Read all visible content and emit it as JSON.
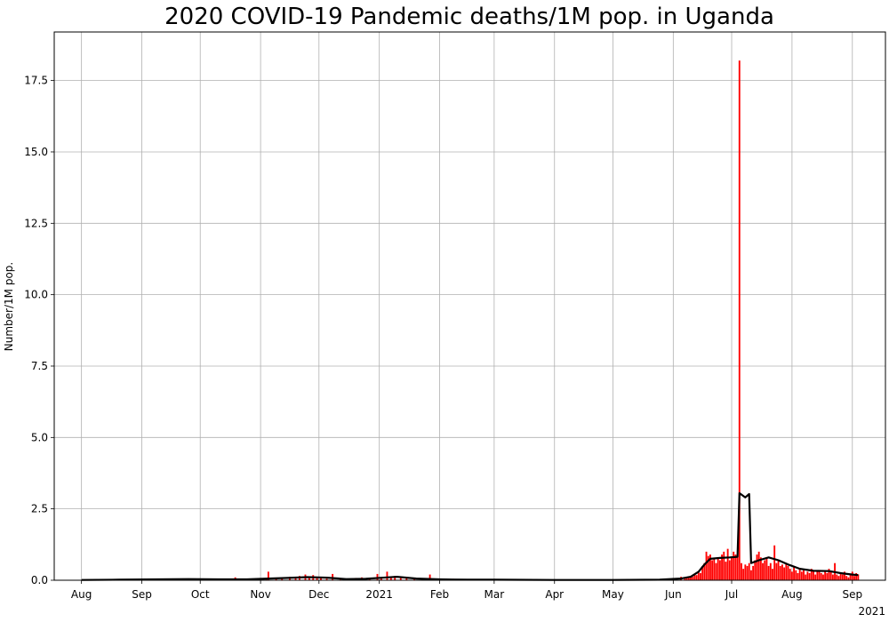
{
  "chart_data": {
    "type": "bar",
    "title": "2020 COVID-19 Pandemic deaths/1M pop. in Uganda",
    "ylabel": "Number/1M pop.",
    "xlabel": "",
    "x_start": "2020-07-18",
    "x_end": "2021-09-18",
    "ylim": [
      0,
      19.2
    ],
    "yticks": [
      0,
      2.5,
      5,
      7.5,
      10,
      12.5,
      15,
      17.5
    ],
    "ytick_labels": [
      "0.0",
      "2.5",
      "5.0",
      "7.5",
      "10.0",
      "12.5",
      "15.0",
      "17.5"
    ],
    "xticks": [
      {
        "date": "2020-08-01",
        "label": "Aug"
      },
      {
        "date": "2020-09-01",
        "label": "Sep"
      },
      {
        "date": "2020-10-01",
        "label": "Oct"
      },
      {
        "date": "2020-11-01",
        "label": "Nov"
      },
      {
        "date": "2020-12-01",
        "label": "Dec"
      },
      {
        "date": "2021-01-01",
        "label": "2021"
      },
      {
        "date": "2021-02-01",
        "label": "Feb"
      },
      {
        "date": "2021-03-01",
        "label": "Mar"
      },
      {
        "date": "2021-04-01",
        "label": "Apr"
      },
      {
        "date": "2021-05-01",
        "label": "May"
      },
      {
        "date": "2021-06-01",
        "label": "Jun"
      },
      {
        "date": "2021-07-01",
        "label": "Jul"
      },
      {
        "date": "2021-08-01",
        "label": "Aug"
      },
      {
        "date": "2021-09-01",
        "label": "Sep"
      }
    ],
    "offset_label": "2021",
    "grid": true,
    "series": [
      {
        "kind": "bar",
        "color": "#ff0000",
        "points": [
          [
            "2020-08-12",
            0.02
          ],
          [
            "2020-08-20",
            0.02
          ],
          [
            "2020-09-05",
            0.04
          ],
          [
            "2020-09-14",
            0.03
          ],
          [
            "2020-09-22",
            0.05
          ],
          [
            "2020-09-28",
            0.04
          ],
          [
            "2020-10-06",
            0.03
          ],
          [
            "2020-10-14",
            0.04
          ],
          [
            "2020-10-19",
            0.1
          ],
          [
            "2020-10-26",
            0.03
          ],
          [
            "2020-11-04",
            0.06
          ],
          [
            "2020-11-05",
            0.3
          ],
          [
            "2020-11-09",
            0.08
          ],
          [
            "2020-11-12",
            0.1
          ],
          [
            "2020-11-16",
            0.12
          ],
          [
            "2020-11-19",
            0.08
          ],
          [
            "2020-11-21",
            0.15
          ],
          [
            "2020-11-24",
            0.2
          ],
          [
            "2020-11-26",
            0.12
          ],
          [
            "2020-11-28",
            0.18
          ],
          [
            "2020-11-30",
            0.1
          ],
          [
            "2020-12-02",
            0.08
          ],
          [
            "2020-12-05",
            0.05
          ],
          [
            "2020-12-08",
            0.22
          ],
          [
            "2020-12-12",
            0.04
          ],
          [
            "2020-12-16",
            0.06
          ],
          [
            "2020-12-20",
            0.08
          ],
          [
            "2020-12-23",
            0.1
          ],
          [
            "2020-12-27",
            0.06
          ],
          [
            "2020-12-31",
            0.22
          ],
          [
            "2021-01-02",
            0.08
          ],
          [
            "2021-01-05",
            0.3
          ],
          [
            "2021-01-07",
            0.12
          ],
          [
            "2021-01-09",
            0.15
          ],
          [
            "2021-01-12",
            0.1
          ],
          [
            "2021-01-15",
            0.08
          ],
          [
            "2021-01-19",
            0.06
          ],
          [
            "2021-01-23",
            0.04
          ],
          [
            "2021-01-27",
            0.2
          ],
          [
            "2021-01-30",
            0.05
          ],
          [
            "2021-02-04",
            0.06
          ],
          [
            "2021-02-08",
            0.05
          ],
          [
            "2021-02-12",
            0.04
          ],
          [
            "2021-02-18",
            0.03
          ],
          [
            "2021-02-25",
            0.03
          ],
          [
            "2021-03-05",
            0.03
          ],
          [
            "2021-03-12",
            0.02
          ],
          [
            "2021-03-20",
            0.02
          ],
          [
            "2021-03-28",
            0.02
          ],
          [
            "2021-04-06",
            0.02
          ],
          [
            "2021-04-15",
            0.02
          ],
          [
            "2021-04-25",
            0.02
          ],
          [
            "2021-05-05",
            0.02
          ],
          [
            "2021-05-15",
            0.03
          ],
          [
            "2021-05-23",
            0.03
          ],
          [
            "2021-05-28",
            0.06
          ],
          [
            "2021-06-02",
            0.04
          ],
          [
            "2021-06-05",
            0.12
          ],
          [
            "2021-06-07",
            0.06
          ],
          [
            "2021-06-08",
            0.1
          ],
          [
            "2021-06-09",
            0.08
          ],
          [
            "2021-06-10",
            0.15
          ],
          [
            "2021-06-11",
            0.12
          ],
          [
            "2021-06-12",
            0.2
          ],
          [
            "2021-06-13",
            0.18
          ],
          [
            "2021-06-14",
            0.3
          ],
          [
            "2021-06-15",
            0.25
          ],
          [
            "2021-06-16",
            0.5
          ],
          [
            "2021-06-17",
            0.6
          ],
          [
            "2021-06-18",
            1.0
          ],
          [
            "2021-06-19",
            0.85
          ],
          [
            "2021-06-20",
            0.9
          ],
          [
            "2021-06-21",
            0.7
          ],
          [
            "2021-06-22",
            0.75
          ],
          [
            "2021-06-23",
            0.6
          ],
          [
            "2021-06-24",
            0.8
          ],
          [
            "2021-06-25",
            0.7
          ],
          [
            "2021-06-26",
            0.9
          ],
          [
            "2021-06-27",
            1.0
          ],
          [
            "2021-06-28",
            0.65
          ],
          [
            "2021-06-29",
            1.1
          ],
          [
            "2021-06-30",
            0.7
          ],
          [
            "2021-07-01",
            0.8
          ],
          [
            "2021-07-02",
            1.0
          ],
          [
            "2021-07-03",
            0.9
          ],
          [
            "2021-07-04",
            0.85
          ],
          [
            "2021-07-05",
            18.2
          ],
          [
            "2021-07-06",
            0.6
          ],
          [
            "2021-07-07",
            0.4
          ],
          [
            "2021-07-08",
            0.55
          ],
          [
            "2021-07-09",
            0.5
          ],
          [
            "2021-07-10",
            0.6
          ],
          [
            "2021-07-11",
            0.35
          ],
          [
            "2021-07-12",
            0.5
          ],
          [
            "2021-07-13",
            0.7
          ],
          [
            "2021-07-14",
            0.9
          ],
          [
            "2021-07-15",
            1.0
          ],
          [
            "2021-07-16",
            0.8
          ],
          [
            "2021-07-17",
            0.6
          ],
          [
            "2021-07-18",
            0.7
          ],
          [
            "2021-07-19",
            0.8
          ],
          [
            "2021-07-20",
            0.5
          ],
          [
            "2021-07-21",
            0.6
          ],
          [
            "2021-07-22",
            0.4
          ],
          [
            "2021-07-23",
            1.22
          ],
          [
            "2021-07-24",
            0.6
          ],
          [
            "2021-07-25",
            0.7
          ],
          [
            "2021-07-26",
            0.5
          ],
          [
            "2021-07-27",
            0.55
          ],
          [
            "2021-07-28",
            0.45
          ],
          [
            "2021-07-29",
            0.6
          ],
          [
            "2021-07-30",
            0.5
          ],
          [
            "2021-07-31",
            0.4
          ],
          [
            "2021-08-01",
            0.3
          ],
          [
            "2021-08-02",
            0.5
          ],
          [
            "2021-08-03",
            0.35
          ],
          [
            "2021-08-04",
            0.25
          ],
          [
            "2021-08-05",
            0.4
          ],
          [
            "2021-08-06",
            0.3
          ],
          [
            "2021-08-07",
            0.35
          ],
          [
            "2021-08-08",
            0.2
          ],
          [
            "2021-08-09",
            0.3
          ],
          [
            "2021-08-10",
            0.25
          ],
          [
            "2021-08-11",
            0.4
          ],
          [
            "2021-08-12",
            0.3
          ],
          [
            "2021-08-13",
            0.2
          ],
          [
            "2021-08-14",
            0.35
          ],
          [
            "2021-08-15",
            0.3
          ],
          [
            "2021-08-16",
            0.25
          ],
          [
            "2021-08-17",
            0.2
          ],
          [
            "2021-08-18",
            0.3
          ],
          [
            "2021-08-19",
            0.25
          ],
          [
            "2021-08-20",
            0.4
          ],
          [
            "2021-08-21",
            0.3
          ],
          [
            "2021-08-22",
            0.2
          ],
          [
            "2021-08-23",
            0.6
          ],
          [
            "2021-08-24",
            0.2
          ],
          [
            "2021-08-25",
            0.15
          ],
          [
            "2021-08-26",
            0.25
          ],
          [
            "2021-08-27",
            0.2
          ],
          [
            "2021-08-28",
            0.3
          ],
          [
            "2021-08-29",
            0.15
          ],
          [
            "2021-08-30",
            0.1
          ],
          [
            "2021-08-31",
            0.2
          ],
          [
            "2021-09-01",
            0.3
          ],
          [
            "2021-09-02",
            0.15
          ],
          [
            "2021-09-03",
            0.25
          ],
          [
            "2021-09-04",
            0.2
          ]
        ]
      },
      {
        "kind": "line",
        "color": "#000000",
        "points": [
          [
            "2020-08-01",
            0.01
          ],
          [
            "2020-08-20",
            0.02
          ],
          [
            "2020-09-10",
            0.03
          ],
          [
            "2020-09-25",
            0.04
          ],
          [
            "2020-10-10",
            0.03
          ],
          [
            "2020-10-25",
            0.03
          ],
          [
            "2020-11-05",
            0.06
          ],
          [
            "2020-11-15",
            0.08
          ],
          [
            "2020-11-25",
            0.11
          ],
          [
            "2020-12-05",
            0.09
          ],
          [
            "2020-12-15",
            0.04
          ],
          [
            "2020-12-25",
            0.05
          ],
          [
            "2021-01-05",
            0.1
          ],
          [
            "2021-01-10",
            0.12
          ],
          [
            "2021-01-20",
            0.06
          ],
          [
            "2021-02-01",
            0.03
          ],
          [
            "2021-02-15",
            0.02
          ],
          [
            "2021-03-01",
            0.02
          ],
          [
            "2021-04-01",
            0.01
          ],
          [
            "2021-05-01",
            0.01
          ],
          [
            "2021-05-25",
            0.02
          ],
          [
            "2021-06-05",
            0.06
          ],
          [
            "2021-06-10",
            0.12
          ],
          [
            "2021-06-14",
            0.3
          ],
          [
            "2021-06-17",
            0.55
          ],
          [
            "2021-06-20",
            0.75
          ],
          [
            "2021-06-25",
            0.78
          ],
          [
            "2021-06-30",
            0.8
          ],
          [
            "2021-07-04",
            0.82
          ],
          [
            "2021-07-05",
            3.05
          ],
          [
            "2021-07-08",
            2.9
          ],
          [
            "2021-07-10",
            3.02
          ],
          [
            "2021-07-11",
            0.6
          ],
          [
            "2021-07-15",
            0.7
          ],
          [
            "2021-07-20",
            0.8
          ],
          [
            "2021-07-25",
            0.7
          ],
          [
            "2021-07-30",
            0.55
          ],
          [
            "2021-08-05",
            0.4
          ],
          [
            "2021-08-12",
            0.33
          ],
          [
            "2021-08-20",
            0.32
          ],
          [
            "2021-08-26",
            0.25
          ],
          [
            "2021-09-01",
            0.2
          ],
          [
            "2021-09-04",
            0.18
          ]
        ]
      }
    ]
  }
}
